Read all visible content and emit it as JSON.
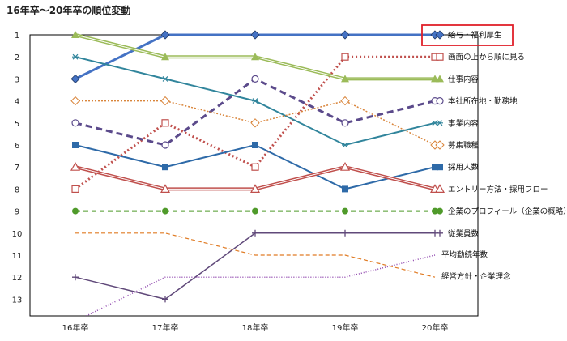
{
  "chart_data": {
    "type": "line",
    "title": "16年卒～20年卒の順位変動",
    "categories": [
      "16年卒",
      "17年卒",
      "18年卒",
      "19年卒",
      "20年卒"
    ],
    "y_ticks": [
      1,
      2,
      3,
      4,
      5,
      6,
      7,
      8,
      9,
      10,
      11,
      12,
      13
    ],
    "ylim": [
      1,
      13
    ],
    "y_reversed": true,
    "legend_position": "right",
    "highlighted_series": "給与・福利厚生",
    "series": [
      {
        "name": "給与・福利厚生",
        "values": [
          3,
          1,
          1,
          1,
          1
        ],
        "color": "#4472c4",
        "dash": "",
        "width": 3,
        "marker": "diamond"
      },
      {
        "name": "画面の上から順に見る",
        "values": [
          8,
          5,
          7,
          2,
          2
        ],
        "color": "#c0504d",
        "dash": "2,3",
        "width": 3,
        "marker": "square-open"
      },
      {
        "name": "仕事内容",
        "values": [
          1,
          2,
          2,
          3,
          3
        ],
        "color": "#9bbb59",
        "dash": "",
        "width": 3,
        "double": true,
        "marker": "triangle"
      },
      {
        "name": "本社所在地・勤務地",
        "values": [
          5,
          6,
          3,
          5,
          4
        ],
        "color": "#5b4a8b",
        "dash": "8,5",
        "width": 3,
        "marker": "circle-open"
      },
      {
        "name": "事業内容",
        "values": [
          2,
          3,
          4,
          6,
          5
        ],
        "color": "#31859c",
        "dash": "",
        "width": 2,
        "marker": "asterisk"
      },
      {
        "name": "募集職種",
        "values": [
          4,
          4,
          5,
          4,
          6
        ],
        "color": "#d9853b",
        "dash": "2,2",
        "width": 1.5,
        "marker": "diamond-open"
      },
      {
        "name": "採用人数",
        "values": [
          6,
          7,
          6,
          8,
          7
        ],
        "color": "#2e6aa8",
        "dash": "",
        "width": 2,
        "marker": "square"
      },
      {
        "name": "エントリー方法・採用フロー",
        "values": [
          7,
          8,
          8,
          7,
          8
        ],
        "color": "#c0504d",
        "dash": "",
        "width": 3,
        "double": true,
        "marker": "triangle-open"
      },
      {
        "name": "企業のプロフィール（企業の概略）",
        "values": [
          9,
          9,
          9,
          9,
          9
        ],
        "color": "#4f9a2a",
        "dash": "6,4",
        "width": 2,
        "marker": "circle"
      },
      {
        "name": "従業員数",
        "values": [
          12,
          13,
          10,
          10,
          10
        ],
        "color": "#60497a",
        "dash": "",
        "width": 1.5,
        "marker": "plus"
      },
      {
        "name": "平均勤続年数",
        "values": [
          10,
          10,
          11,
          11,
          12
        ],
        "color": "#e07b24",
        "dash": "5,3",
        "width": 1.2,
        "marker": "none"
      },
      {
        "name": "経営方針・企業理念",
        "values": [
          14,
          12,
          12,
          12,
          11
        ],
        "color": "#8e44ad",
        "dash": "1,2",
        "width": 1.5,
        "marker": "none"
      }
    ]
  }
}
